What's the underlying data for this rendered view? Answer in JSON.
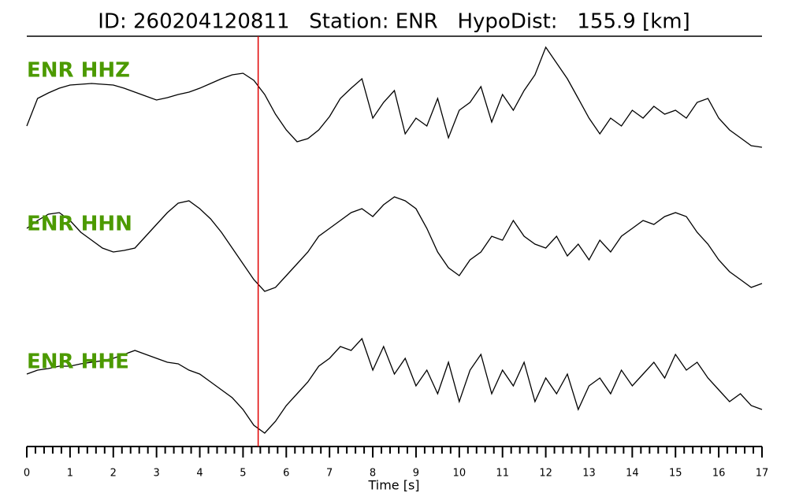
{
  "chart_data": {
    "type": "line",
    "title": "ID: 260204120811   Station: ENR   HypoDist:   155.9 [km]",
    "xlabel": "Time [s]",
    "x": [
      0,
      0.25,
      0.5,
      0.75,
      1,
      1.25,
      1.5,
      1.75,
      2,
      2.25,
      2.5,
      2.75,
      3,
      3.25,
      3.5,
      3.75,
      4,
      4.25,
      4.5,
      4.75,
      5,
      5.25,
      5.5,
      5.75,
      6,
      6.25,
      6.5,
      6.75,
      7,
      7.25,
      7.5,
      7.75,
      8,
      8.25,
      8.5,
      8.75,
      9,
      9.25,
      9.5,
      9.75,
      10,
      10.25,
      10.5,
      10.75,
      11,
      11.25,
      11.5,
      11.75,
      12,
      12.25,
      12.5,
      12.75,
      13,
      13.25,
      13.5,
      13.75,
      14,
      14.25,
      14.5,
      14.75,
      15,
      15.25,
      15.5,
      15.75,
      16,
      16.25,
      16.5,
      16.75,
      17
    ],
    "xlim": [
      0,
      17
    ],
    "xticks": [
      0,
      1,
      2,
      3,
      4,
      5,
      6,
      7,
      8,
      9,
      10,
      11,
      12,
      13,
      14,
      15,
      16,
      17
    ],
    "ylim": [
      -75,
      75
    ],
    "label_color": "#4c9a00",
    "vline": {
      "x": 5.35,
      "color": "#e00000"
    },
    "series": [
      {
        "name": "ENR HHZ",
        "color": "#000000",
        "values": [
          -40,
          -5,
          2,
          8,
          12,
          13,
          14,
          13,
          12,
          8,
          3,
          -2,
          -7,
          -4,
          0,
          3,
          8,
          14,
          20,
          25,
          27,
          18,
          0,
          -25,
          -45,
          -60,
          -56,
          -45,
          -28,
          -5,
          8,
          20,
          -30,
          -10,
          5,
          -50,
          -30,
          -40,
          -5,
          -55,
          -20,
          -10,
          10,
          -35,
          0,
          -20,
          5,
          25,
          60,
          40,
          20,
          -5,
          -30,
          -50,
          -30,
          -40,
          -20,
          -30,
          -15,
          -25,
          -20,
          -30,
          -10,
          -5,
          -30,
          -45,
          -55,
          -65,
          -67
        ]
      },
      {
        "name": "ENR HHN",
        "color": "#000000",
        "values": [
          25,
          35,
          43,
          45,
          35,
          20,
          10,
          0,
          -5,
          -3,
          0,
          15,
          30,
          45,
          57,
          60,
          50,
          37,
          20,
          0,
          -20,
          -40,
          -55,
          -50,
          -35,
          -20,
          -5,
          15,
          25,
          35,
          45,
          50,
          40,
          55,
          65,
          60,
          50,
          25,
          -5,
          -25,
          -35,
          -15,
          -5,
          15,
          10,
          35,
          15,
          5,
          0,
          15,
          -10,
          5,
          -15,
          10,
          -5,
          15,
          25,
          35,
          30,
          40,
          45,
          40,
          20,
          5,
          -15,
          -30,
          -40,
          -50,
          -45
        ]
      },
      {
        "name": "ENR HHE",
        "color": "#000000",
        "values": [
          15,
          20,
          22,
          25,
          25,
          28,
          30,
          32,
          35,
          40,
          45,
          40,
          35,
          30,
          28,
          20,
          15,
          5,
          -5,
          -15,
          -30,
          -50,
          -60,
          -45,
          -25,
          -10,
          5,
          25,
          35,
          50,
          45,
          60,
          20,
          50,
          15,
          35,
          0,
          20,
          -10,
          30,
          -20,
          20,
          40,
          -10,
          20,
          0,
          30,
          -20,
          10,
          -10,
          15,
          -30,
          0,
          10,
          -10,
          20,
          0,
          15,
          30,
          10,
          40,
          20,
          30,
          10,
          -5,
          -20,
          -10,
          -25,
          -30
        ]
      }
    ]
  }
}
